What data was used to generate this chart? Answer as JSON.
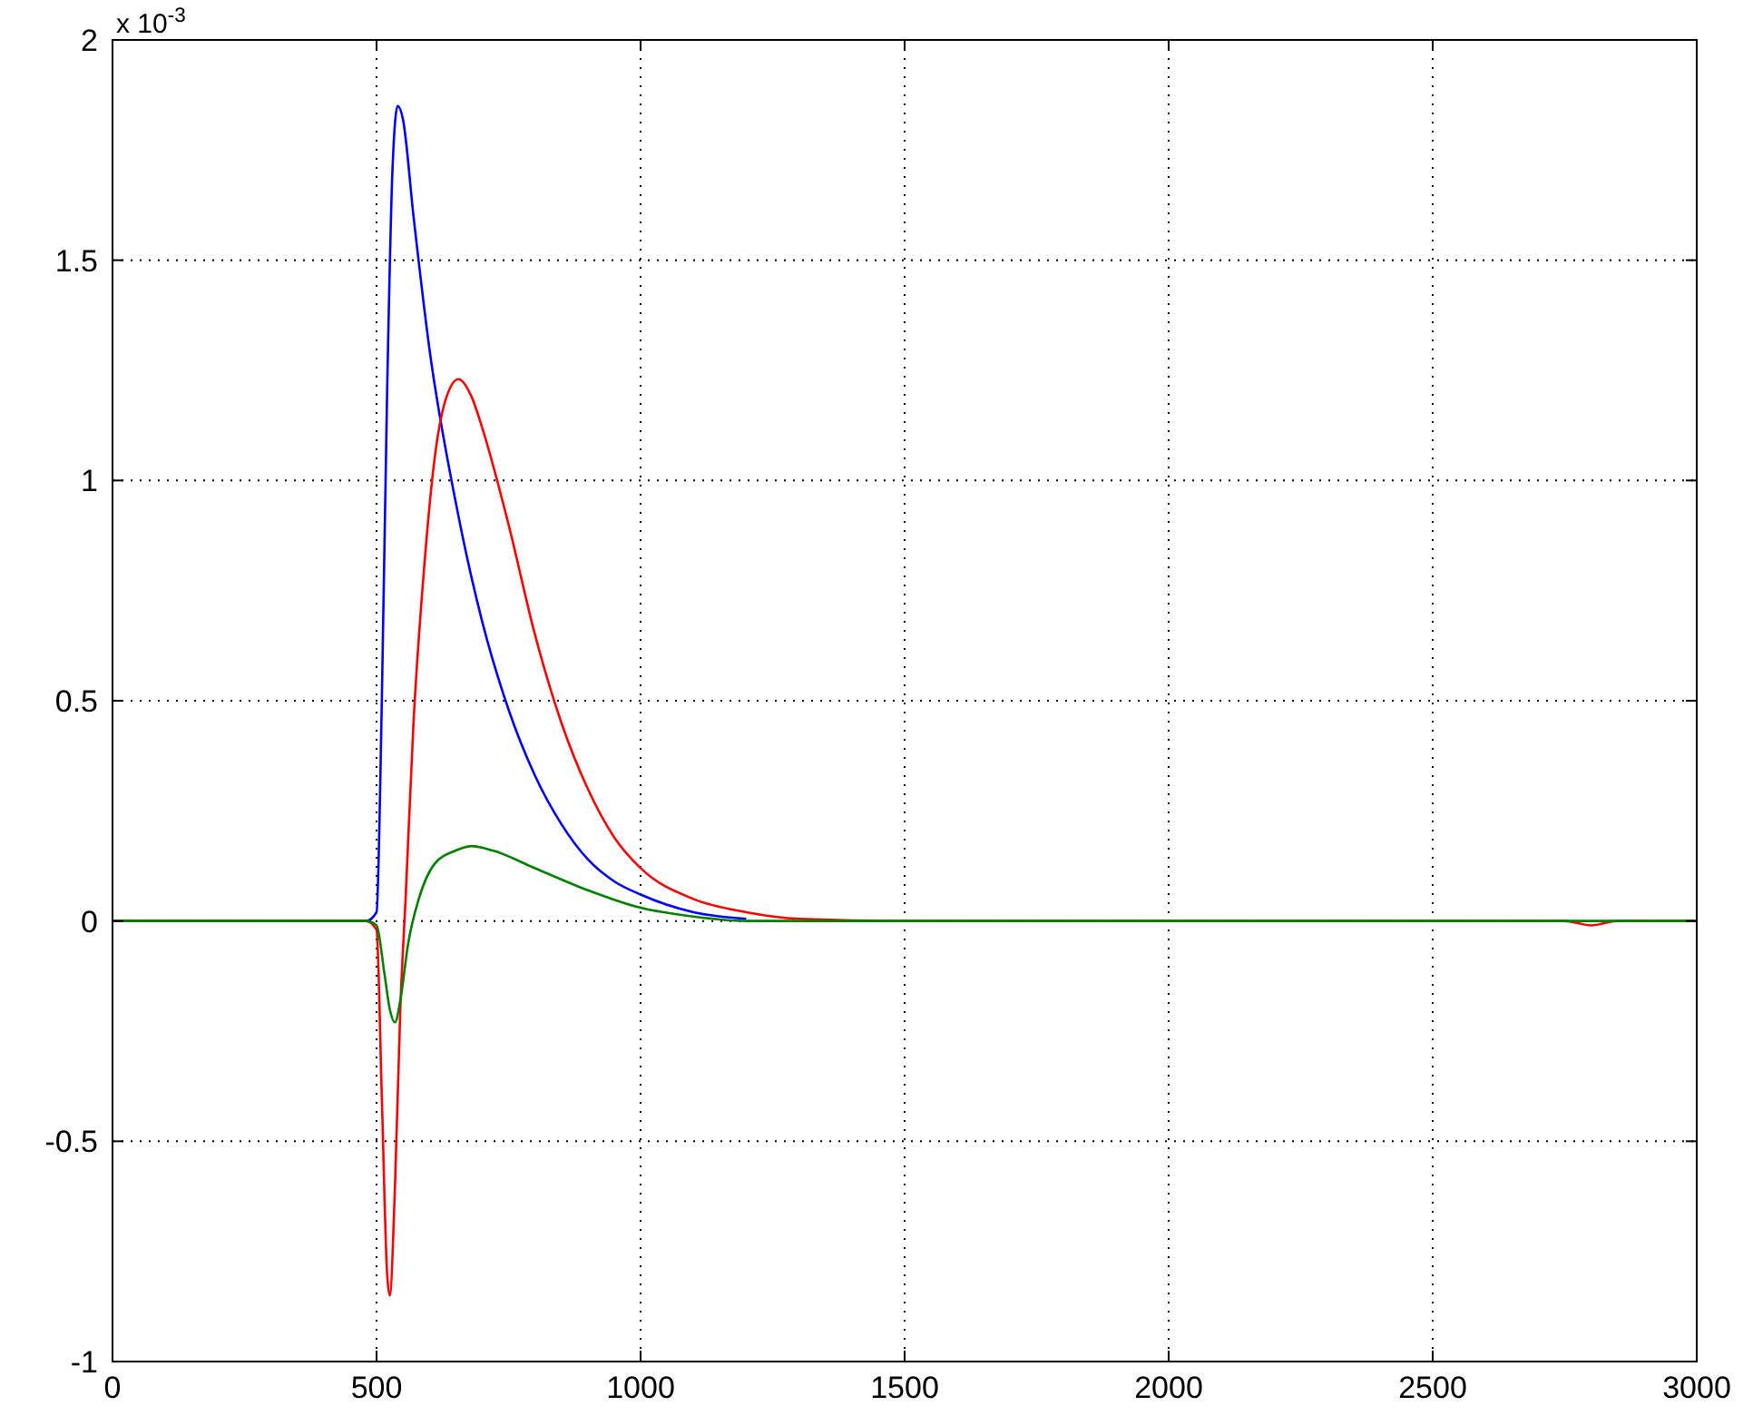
{
  "chart_data": {
    "type": "line",
    "xlim": [
      0,
      3000
    ],
    "xticks": [
      0,
      500,
      1000,
      1500,
      2000,
      2500,
      3000
    ],
    "ylim": [
      -1,
      2
    ],
    "yticks": [
      -1,
      -0.5,
      0,
      0.5,
      1,
      1.5,
      2
    ],
    "grid": true,
    "line_style": "solid",
    "annotations": [
      "x 10$^{-3}$"
    ],
    "series": [
      {
        "color": "#0000ff",
        "x": [
          0,
          480,
          500,
          510,
          520,
          530,
          540,
          550,
          570,
          600,
          650,
          700,
          750,
          800,
          850,
          900,
          950,
          1000,
          1100,
          1200
        ],
        "values": [
          0,
          0,
          0.02,
          0.5,
          1.2,
          1.7,
          1.85,
          1.82,
          1.6,
          1.3,
          0.95,
          0.68,
          0.48,
          0.33,
          0.22,
          0.14,
          0.09,
          0.06,
          0.02,
          0.005
        ]
      },
      {
        "color": "#ff0000",
        "x": [
          0,
          480,
          500,
          510,
          520,
          525,
          535,
          545,
          555,
          570,
          590,
          610,
          630,
          655,
          680,
          700,
          750,
          800,
          850,
          900,
          950,
          1000,
          1100,
          1200,
          1300,
          1500,
          2000,
          2750,
          2800,
          2850,
          3000
        ],
        "values": [
          0,
          0,
          -0.02,
          -0.4,
          -0.8,
          -0.85,
          -0.6,
          -0.2,
          0.05,
          0.45,
          0.8,
          1.05,
          1.18,
          1.23,
          1.19,
          1.12,
          0.9,
          0.65,
          0.45,
          0.3,
          0.19,
          0.12,
          0.05,
          0.02,
          0.005,
          0,
          0,
          0,
          -0.01,
          0,
          0
        ]
      },
      {
        "color": "#008000",
        "x": [
          0,
          480,
          500,
          515,
          525,
          535,
          545,
          560,
          580,
          610,
          650,
          680,
          720,
          800,
          900,
          1000,
          1100,
          1200,
          1500,
          2000,
          3000
        ],
        "values": [
          0,
          0,
          -0.01,
          -0.12,
          -0.2,
          -0.23,
          -0.18,
          -0.05,
          0.05,
          0.13,
          0.16,
          0.17,
          0.16,
          0.12,
          0.07,
          0.03,
          0.01,
          0,
          0,
          0,
          0
        ]
      }
    ]
  }
}
